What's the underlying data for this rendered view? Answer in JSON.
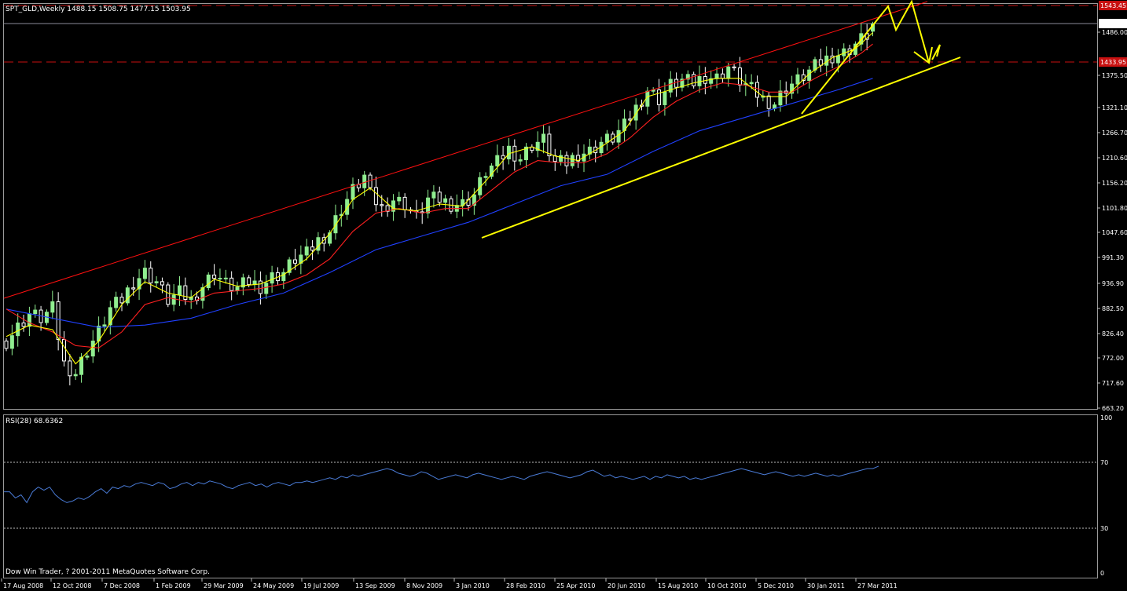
{
  "window": {
    "symbol_header": "SPT_GLD,Weekly  1488.15 1508.75 1477.15 1503.95",
    "rsi_header": "RSI(28) 68.6362",
    "copyright": "Dow Win Trader, ? 2001-2011 MetaQuotes Software Corp."
  },
  "colors": {
    "background": "#000000",
    "bull_candle": "#90ee90",
    "bear_candle": "#ffffff",
    "ma_fast": "#ffff00",
    "ma_mid": "#ff2020",
    "ma_slow": "#2040ff",
    "channel_line": "#ff1010",
    "support_line": "#ffff00",
    "rsi_line": "#4a7bd6",
    "dashed_level": "#c81010"
  },
  "chart_data": [
    {
      "type": "candlestick",
      "title": "SPT_GLD,Weekly",
      "ohlc_current": {
        "open": 1488.15,
        "high": 1508.75,
        "low": 1477.15,
        "close": 1503.95
      },
      "price_axis_ticks": [
        "1486.00",
        "1375.50",
        "1321.10",
        "1266.70",
        "1210.60",
        "1156.20",
        "1101.80",
        "1047.60",
        "991.30",
        "936.90",
        "882.50",
        "826.40",
        "772.00",
        "717.60",
        "663.20"
      ],
      "price_labels": {
        "current": "1503.95",
        "top_level": "1543.45",
        "mid_level": "1433.95"
      },
      "ylim": [
        663.2,
        1550
      ],
      "x_axis_ticks": [
        "17 Aug 2008",
        "12 Oct 2008",
        "7 Dec 2008",
        "1 Feb 2009",
        "29 Mar 2009",
        "24 May 2009",
        "19 Jul 2009",
        "13 Sep 2009",
        "8 Nov 2009",
        "3 Jan 2010",
        "28 Feb 2010",
        "25 Apr 2010",
        "20 Jun 2010",
        "15 Aug 2010",
        "10 Oct 2010",
        "5 Dec 2010",
        "30 Jan 2011",
        "27 Mar 2011"
      ],
      "close_path": [
        [
          0,
          810
        ],
        [
          2,
          840
        ],
        [
          4,
          870
        ],
        [
          6,
          860
        ],
        [
          8,
          880
        ],
        [
          10,
          760
        ],
        [
          12,
          740
        ],
        [
          14,
          790
        ],
        [
          16,
          830
        ],
        [
          18,
          880
        ],
        [
          20,
          900
        ],
        [
          22,
          940
        ],
        [
          24,
          960
        ],
        [
          26,
          940
        ],
        [
          28,
          900
        ],
        [
          30,
          915
        ],
        [
          32,
          900
        ],
        [
          34,
          930
        ],
        [
          36,
          960
        ],
        [
          38,
          935
        ],
        [
          40,
          925
        ],
        [
          42,
          940
        ],
        [
          44,
          930
        ],
        [
          46,
          950
        ],
        [
          48,
          960
        ],
        [
          50,
          990
        ],
        [
          52,
          1000
        ],
        [
          54,
          1030
        ],
        [
          56,
          1050
        ],
        [
          58,
          1100
        ],
        [
          60,
          1140
        ],
        [
          62,
          1170
        ],
        [
          63,
          1130
        ],
        [
          65,
          1100
        ],
        [
          67,
          1120
        ],
        [
          69,
          1110
        ],
        [
          71,
          1080
        ],
        [
          73,
          1120
        ],
        [
          75,
          1120
        ],
        [
          77,
          1110
        ],
        [
          79,
          1110
        ],
        [
          81,
          1130
        ],
        [
          83,
          1180
        ],
        [
          85,
          1200
        ],
        [
          87,
          1230
        ],
        [
          89,
          1210
        ],
        [
          91,
          1240
        ],
        [
          93,
          1250
        ],
        [
          95,
          1200
        ],
        [
          97,
          1200
        ],
        [
          99,
          1220
        ],
        [
          101,
          1225
        ],
        [
          103,
          1245
        ],
        [
          105,
          1255
        ],
        [
          107,
          1280
        ],
        [
          109,
          1320
        ],
        [
          111,
          1360
        ],
        [
          113,
          1340
        ],
        [
          115,
          1370
        ],
        [
          117,
          1380
        ],
        [
          119,
          1375
        ],
        [
          121,
          1390
        ],
        [
          123,
          1385
        ],
        [
          125,
          1410
        ],
        [
          127,
          1380
        ],
        [
          129,
          1360
        ],
        [
          131,
          1340
        ],
        [
          133,
          1330
        ],
        [
          135,
          1365
        ],
        [
          137,
          1380
        ],
        [
          139,
          1400
        ],
        [
          141,
          1420
        ],
        [
          143,
          1435
        ],
        [
          145,
          1440
        ],
        [
          147,
          1460
        ],
        [
          149,
          1480
        ],
        [
          150,
          1503.95
        ]
      ],
      "ma_fast_path": [
        [
          0,
          820
        ],
        [
          4,
          845
        ],
        [
          8,
          835
        ],
        [
          12,
          760
        ],
        [
          16,
          810
        ],
        [
          20,
          890
        ],
        [
          24,
          940
        ],
        [
          28,
          915
        ],
        [
          32,
          905
        ],
        [
          36,
          945
        ],
        [
          40,
          930
        ],
        [
          44,
          935
        ],
        [
          48,
          955
        ],
        [
          52,
          990
        ],
        [
          56,
          1045
        ],
        [
          60,
          1120
        ],
        [
          63,
          1145
        ],
        [
          67,
          1100
        ],
        [
          71,
          1095
        ],
        [
          75,
          1110
        ],
        [
          79,
          1105
        ],
        [
          83,
          1160
        ],
        [
          87,
          1220
        ],
        [
          91,
          1235
        ],
        [
          95,
          1215
        ],
        [
          99,
          1205
        ],
        [
          103,
          1235
        ],
        [
          107,
          1270
        ],
        [
          111,
          1345
        ],
        [
          115,
          1360
        ],
        [
          119,
          1375
        ],
        [
          123,
          1385
        ],
        [
          127,
          1385
        ],
        [
          131,
          1345
        ],
        [
          135,
          1345
        ],
        [
          139,
          1395
        ],
        [
          143,
          1430
        ],
        [
          147,
          1450
        ],
        [
          150,
          1485
        ]
      ],
      "ma_mid_path": [
        [
          0,
          880
        ],
        [
          4,
          850
        ],
        [
          8,
          830
        ],
        [
          12,
          800
        ],
        [
          16,
          795
        ],
        [
          20,
          830
        ],
        [
          24,
          890
        ],
        [
          28,
          905
        ],
        [
          32,
          895
        ],
        [
          36,
          915
        ],
        [
          40,
          920
        ],
        [
          44,
          925
        ],
        [
          48,
          935
        ],
        [
          52,
          955
        ],
        [
          56,
          990
        ],
        [
          60,
          1050
        ],
        [
          64,
          1090
        ],
        [
          68,
          1100
        ],
        [
          72,
          1090
        ],
        [
          76,
          1100
        ],
        [
          80,
          1100
        ],
        [
          84,
          1140
        ],
        [
          88,
          1180
        ],
        [
          92,
          1205
        ],
        [
          96,
          1200
        ],
        [
          100,
          1200
        ],
        [
          104,
          1220
        ],
        [
          108,
          1255
        ],
        [
          112,
          1300
        ],
        [
          116,
          1335
        ],
        [
          120,
          1360
        ],
        [
          124,
          1375
        ],
        [
          128,
          1370
        ],
        [
          132,
          1355
        ],
        [
          136,
          1355
        ],
        [
          140,
          1385
        ],
        [
          144,
          1410
        ],
        [
          148,
          1440
        ],
        [
          150,
          1460
        ]
      ],
      "ma_slow_path": [
        [
          0,
          880
        ],
        [
          8,
          860
        ],
        [
          16,
          840
        ],
        [
          24,
          845
        ],
        [
          32,
          860
        ],
        [
          40,
          890
        ],
        [
          48,
          915
        ],
        [
          56,
          960
        ],
        [
          64,
          1010
        ],
        [
          72,
          1040
        ],
        [
          80,
          1070
        ],
        [
          88,
          1110
        ],
        [
          96,
          1150
        ],
        [
          104,
          1175
        ],
        [
          112,
          1225
        ],
        [
          120,
          1270
        ],
        [
          128,
          1300
        ],
        [
          136,
          1330
        ],
        [
          144,
          1360
        ],
        [
          150,
          1385
        ]
      ]
    },
    {
      "type": "line",
      "title": "RSI(28) 68.6362",
      "levels": [
        "100",
        "70",
        "30",
        "0"
      ],
      "ylim": [
        0,
        100
      ],
      "values": [
        52,
        52,
        48,
        50,
        45,
        52,
        55,
        53,
        55,
        50,
        47,
        45,
        46,
        48,
        47,
        49,
        52,
        54,
        51,
        55,
        54,
        56,
        55,
        57,
        58,
        57,
        56,
        58,
        57,
        54,
        55,
        57,
        58,
        56,
        58,
        57,
        59,
        58,
        57,
        55,
        54,
        56,
        57,
        58,
        56,
        57,
        55,
        57,
        58,
        57,
        56,
        58,
        58,
        59,
        58,
        59,
        60,
        61,
        60,
        62,
        61,
        63,
        62,
        63,
        64,
        65,
        66,
        67,
        66,
        64,
        63,
        62,
        63,
        65,
        64,
        62,
        60,
        61,
        62,
        63,
        62,
        61,
        63,
        64,
        63,
        62,
        61,
        60,
        61,
        62,
        61,
        60,
        62,
        63,
        64,
        65,
        64,
        63,
        62,
        61,
        62,
        63,
        65,
        66,
        64,
        62,
        63,
        61,
        62,
        61,
        60,
        61,
        62,
        60,
        62,
        61,
        63,
        62,
        61,
        62,
        60,
        61,
        60,
        61,
        62,
        63,
        64,
        65,
        66,
        67,
        66,
        65,
        64,
        63,
        64,
        65,
        64,
        63,
        62,
        63,
        62,
        63,
        64,
        63,
        62,
        63,
        62,
        63,
        64,
        65,
        66,
        67,
        67,
        68.6
      ]
    }
  ]
}
